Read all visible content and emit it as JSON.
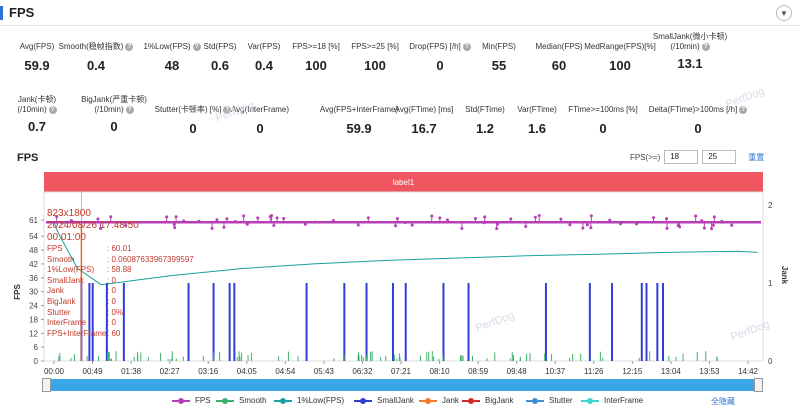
{
  "header": {
    "title": "FPS"
  },
  "stats_row1": [
    {
      "label": [
        "Avg(FPS)"
      ],
      "value": "59.9"
    },
    {
      "label": [
        "Smooth(稳帧指数)"
      ],
      "value": "0.4",
      "help": true
    },
    {
      "label": [
        "1%Low(FPS)"
      ],
      "value": "48",
      "help": true
    },
    {
      "label": [
        "Std(FPS)"
      ],
      "value": "0.6"
    },
    {
      "label": [
        "Var(FPS)"
      ],
      "value": "0.4"
    },
    {
      "label": [
        "FPS>=18 [%]"
      ],
      "value": "100"
    },
    {
      "label": [
        "FPS>=25 [%]"
      ],
      "value": "100"
    },
    {
      "label": [
        "Drop(FPS) [/h]"
      ],
      "value": "0",
      "help": true
    },
    {
      "label": [
        "Min(FPS)"
      ],
      "value": "55"
    },
    {
      "label": [
        "Median(FPS)"
      ],
      "value": "60"
    },
    {
      "label": [
        "MedRange(FPS)[%]"
      ],
      "value": "100"
    },
    {
      "label": [
        "SmallJank(微小卡顿)",
        "(/10min)"
      ],
      "value": "13.1",
      "help": true
    }
  ],
  "stats_row2": [
    {
      "label": [
        "Jank(卡顿)",
        "(/10min)"
      ],
      "value": "0.7",
      "help": true
    },
    {
      "label": [
        "BigJank(严重卡顿)",
        "(/10min)"
      ],
      "value": "0",
      "help": true
    },
    {
      "label": [
        "Stutter(卡顿率) [%]"
      ],
      "value": "0",
      "help": true
    },
    {
      "label": [
        "Avg(InterFrame)"
      ],
      "value": "0"
    },
    {
      "label": [
        "Avg(FPS+InterFrame)"
      ],
      "value": "59.9"
    },
    {
      "label": [
        "Avg(FTime) [ms]"
      ],
      "value": "16.7"
    },
    {
      "label": [
        "Std(FTime)"
      ],
      "value": "1.2"
    },
    {
      "label": [
        "Var(FTime)"
      ],
      "value": "1.6"
    },
    {
      "label": [
        "FTime>=100ms [%]"
      ],
      "value": "0"
    },
    {
      "label": [
        "Delta(FTime)>100ms [/h]"
      ],
      "value": "0",
      "help": true
    }
  ],
  "chart": {
    "title": "FPS",
    "fps_range_label": "FPS(>=)",
    "fps_threshold_1": "18",
    "fps_threshold_2": "25",
    "reset_label": "重置",
    "label_bar_text": "label1",
    "y_axis_title": "FPS",
    "y2_axis_title": "Jank",
    "watermark": "PerfDog"
  },
  "tooltip": {
    "resolution": "823x1800",
    "datetime": "2024/08/26 17:48:50",
    "elapsed": "00:01:00",
    "rows": [
      {
        "k": "FPS",
        "v": ": 60.01"
      },
      {
        "k": "Smooth",
        "v": ": 0.06087633967399597"
      },
      {
        "k": "1%Low(FPS)",
        "v": ": 58.88"
      },
      {
        "k": "SmallJank",
        "v": ": 0"
      },
      {
        "k": "Jank",
        "v": ": 0"
      },
      {
        "k": "BigJank",
        "v": ": 0"
      },
      {
        "k": "Stutter",
        "v": ": 0%"
      },
      {
        "k": "InterFrame",
        "v": ": 0"
      },
      {
        "k": "FPS+InterFrame",
        "v": ": 60"
      }
    ]
  },
  "legend": {
    "items": [
      {
        "name": "FPS",
        "color": "#b63fb7"
      },
      {
        "name": "Smooth",
        "color": "#3cb36a"
      },
      {
        "name": "1%Low(FPS)",
        "color": "#17a2a0"
      },
      {
        "name": "SmallJank",
        "color": "#2f3fd6"
      },
      {
        "name": "Jank",
        "color": "#f07a2a"
      },
      {
        "name": "BigJank",
        "color": "#d62b2b"
      },
      {
        "name": "Stutter",
        "color": "#3f8fd6"
      },
      {
        "name": "InterFrame",
        "color": "#3fd6d0"
      }
    ],
    "hide_all": "全隐藏"
  },
  "chart_data": {
    "type": "line",
    "x_ticks": [
      "00:00",
      "00:49",
      "01:38",
      "02:27",
      "03:16",
      "04:05",
      "04:54",
      "05:43",
      "06:32",
      "07:21",
      "08:10",
      "08:59",
      "09:48",
      "10:37",
      "11:26",
      "12:15",
      "13:04",
      "13:53",
      "14:42"
    ],
    "y_ticks": [
      0,
      6,
      12,
      18,
      24,
      30,
      36,
      42,
      48,
      54,
      61
    ],
    "y2_ticks": [
      0,
      1,
      2
    ],
    "ylim": [
      0,
      61
    ],
    "y2lim": [
      0,
      2
    ],
    "series": [
      {
        "name": "FPS",
        "color": "#b63fb7",
        "typical": 60
      },
      {
        "name": "1%Low(FPS)",
        "color": "#17a2a0",
        "points": [
          [
            0,
            60
          ],
          [
            0.1,
            55
          ],
          [
            0.5,
            40
          ],
          [
            1.0,
            33
          ],
          [
            2.5,
            37
          ],
          [
            4,
            40
          ],
          [
            5.5,
            42
          ],
          [
            7,
            43.5
          ],
          [
            8.5,
            44.5
          ],
          [
            10,
            45.5
          ],
          [
            11.5,
            46.2
          ],
          [
            13,
            47
          ],
          [
            14.5,
            47.5
          ],
          [
            14.9,
            47
          ]
        ]
      },
      {
        "name": "SmallJank",
        "color": "#2f3fd6"
      },
      {
        "name": "Jank",
        "color": "#f07a2a"
      },
      {
        "name": "Smooth",
        "color": "#3cb36a"
      }
    ],
    "jank_times": [
      0.58,
      0.75,
      0.82,
      1.12,
      1.48,
      2.85,
      3.38,
      3.72,
      3.82,
      5.35,
      6.15,
      6.62,
      7.18,
      7.45,
      8.25,
      8.78,
      10.42,
      11.35,
      11.82,
      12.45,
      12.55,
      12.78,
      12.9
    ]
  }
}
